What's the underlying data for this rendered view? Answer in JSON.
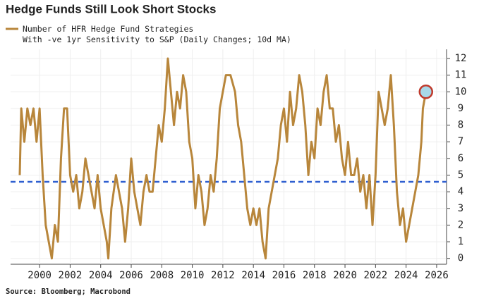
{
  "chart_data": {
    "type": "line",
    "title": "Hedge Funds Still Look Short Stocks",
    "source": "Source: Bloomberg; Macrobond",
    "series": [
      {
        "name": "Number of HFR Hedge Fund Strategies\nWith -ve 1yr Sensitivity to S&P (Daily Changes; 10d MA)",
        "color": "#b8863b",
        "x": [
          1998.7,
          1998.8,
          1999.0,
          1999.2,
          1999.4,
          1999.6,
          1999.8,
          2000.0,
          2000.2,
          2000.4,
          2000.6,
          2000.8,
          2001.0,
          2001.2,
          2001.4,
          2001.6,
          2001.8,
          2002.0,
          2002.2,
          2002.4,
          2002.6,
          2002.8,
          2003.0,
          2003.2,
          2003.4,
          2003.6,
          2003.8,
          2004.0,
          2004.2,
          2004.4,
          2004.5,
          2004.7,
          2005.0,
          2005.2,
          2005.4,
          2005.6,
          2005.8,
          2006.0,
          2006.2,
          2006.4,
          2006.6,
          2006.8,
          2007.0,
          2007.2,
          2007.4,
          2007.6,
          2007.8,
          2008.0,
          2008.2,
          2008.4,
          2008.6,
          2008.8,
          2009.0,
          2009.2,
          2009.4,
          2009.6,
          2009.8,
          2010.0,
          2010.2,
          2010.4,
          2010.6,
          2010.8,
          2011.0,
          2011.2,
          2011.4,
          2011.6,
          2011.8,
          2012.0,
          2012.2,
          2012.5,
          2012.8,
          2013.0,
          2013.2,
          2013.4,
          2013.6,
          2013.8,
          2014.0,
          2014.2,
          2014.4,
          2014.6,
          2014.8,
          2015.0,
          2015.2,
          2015.4,
          2015.6,
          2015.8,
          2016.0,
          2016.2,
          2016.4,
          2016.6,
          2016.8,
          2017.0,
          2017.2,
          2017.4,
          2017.6,
          2017.8,
          2018.0,
          2018.2,
          2018.4,
          2018.6,
          2018.8,
          2019.0,
          2019.2,
          2019.4,
          2019.6,
          2019.8,
          2020.0,
          2020.2,
          2020.4,
          2020.6,
          2020.8,
          2021.0,
          2021.2,
          2021.4,
          2021.6,
          2021.8,
          2022.0,
          2022.2,
          2022.4,
          2022.6,
          2022.8,
          2023.0,
          2023.2,
          2023.4,
          2023.6,
          2023.8,
          2024.0,
          2024.2,
          2024.4,
          2024.6,
          2024.8,
          2025.0,
          2025.1,
          2025.3
        ],
        "values": [
          5,
          9,
          7,
          9,
          8,
          9,
          7,
          9,
          5,
          2,
          1,
          0,
          2,
          1,
          6,
          9,
          9,
          5,
          4,
          5,
          3,
          4,
          6,
          5,
          4,
          3,
          5,
          3,
          2,
          1,
          0,
          3,
          5,
          4,
          3,
          1,
          3,
          6,
          4,
          3,
          2,
          4,
          5,
          4,
          4,
          6,
          8,
          7,
          9,
          12,
          10,
          8,
          10,
          9,
          11,
          10,
          7,
          6,
          3,
          5,
          4,
          2,
          3,
          5,
          4,
          6,
          9,
          10,
          11,
          11,
          10,
          8,
          7,
          5,
          3,
          2,
          3,
          2,
          3,
          1,
          0,
          3,
          4,
          5,
          6,
          8,
          9,
          7,
          10,
          8,
          9,
          11,
          10,
          8,
          5,
          7,
          6,
          9,
          8,
          10,
          11,
          9,
          9,
          7,
          8,
          6,
          5,
          7,
          5,
          5,
          6,
          4,
          5,
          3,
          5,
          2,
          5,
          10,
          9,
          8,
          9,
          11,
          8,
          4,
          2,
          3,
          1,
          2,
          3,
          4,
          5,
          7,
          9,
          10
        ]
      }
    ],
    "hline": {
      "value": 4.6,
      "color": "#2f5fd0"
    },
    "xlim": [
      1998.1,
      2026.65
    ],
    "xticks": [
      2000,
      2002,
      2004,
      2006,
      2008,
      2010,
      2012,
      2014,
      2016,
      2018,
      2020,
      2022,
      2024,
      2026
    ],
    "ylim": [
      -0.35,
      12.55
    ],
    "yticks": [
      0,
      1,
      2,
      3,
      4,
      5,
      6,
      7,
      8,
      9,
      10,
      11,
      12
    ],
    "grid": true
  }
}
